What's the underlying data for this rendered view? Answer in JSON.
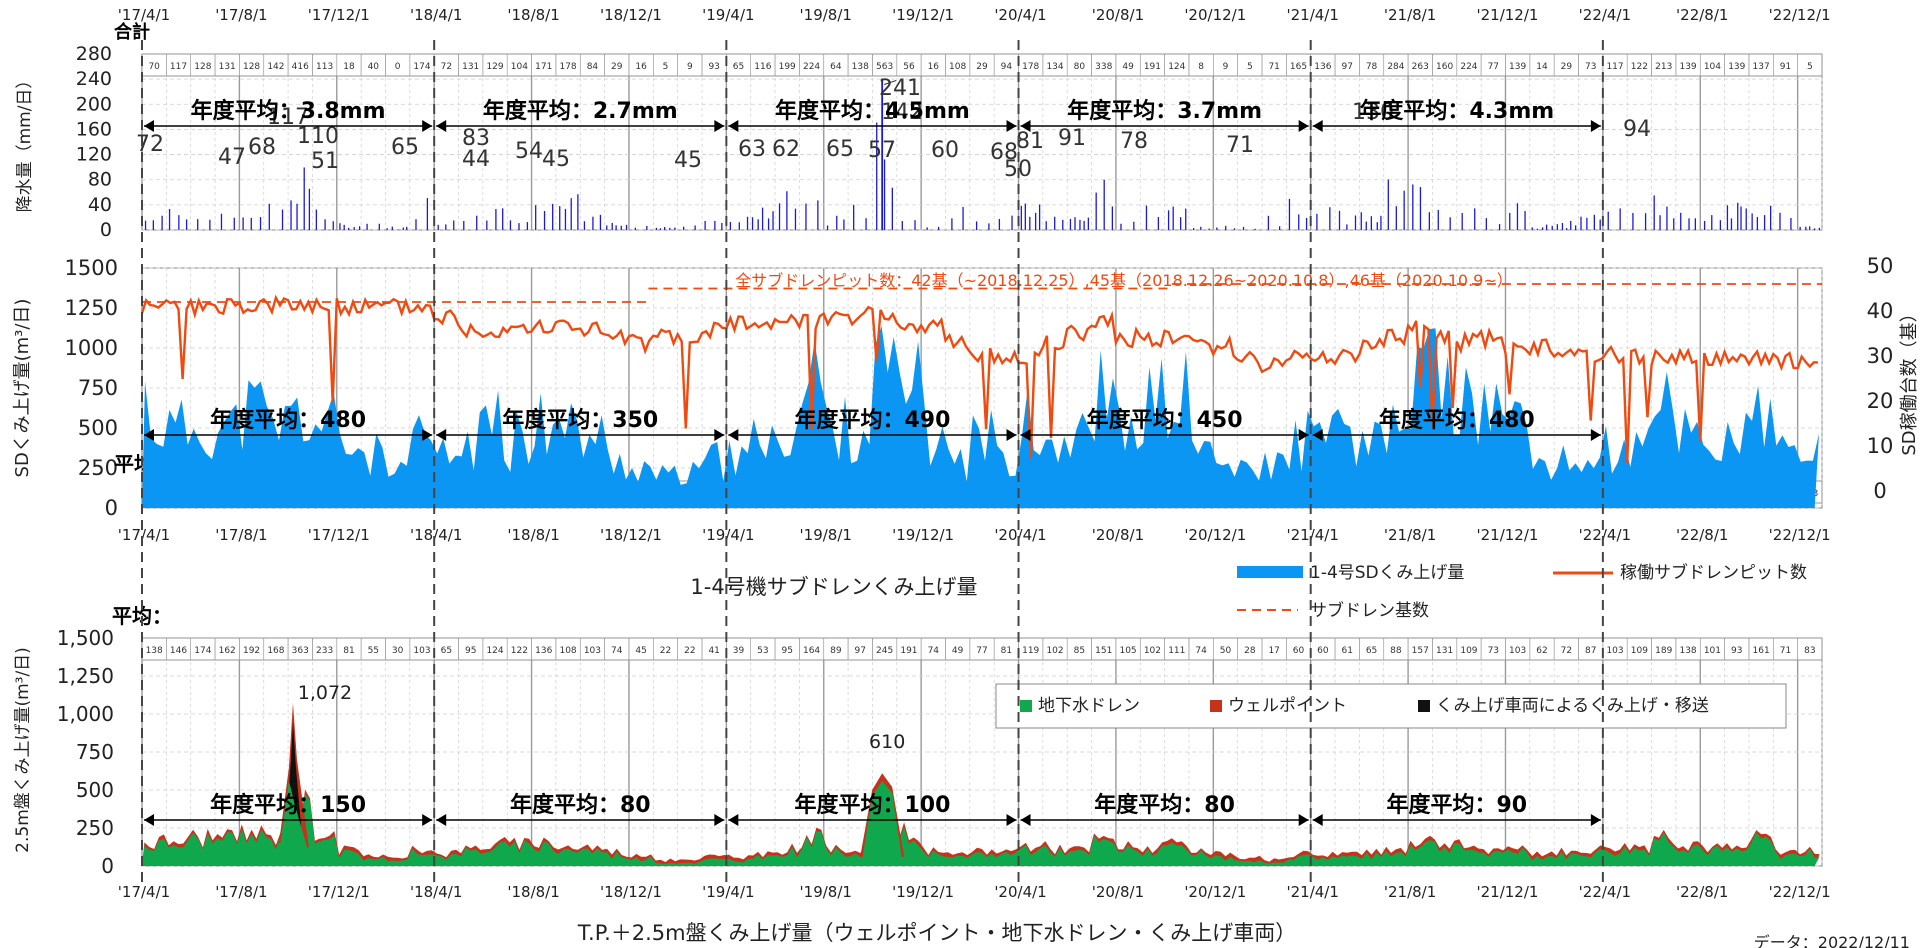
{
  "chart_data": [
    {
      "type": "bar",
      "id": "rain",
      "ylabel": "降水量（mm/日）",
      "corner_label": "合計",
      "ylim": [
        0,
        280
      ],
      "yticks": [
        0,
        40,
        80,
        120,
        160,
        200,
        240,
        280
      ],
      "x_tick_labels": [
        "'17/4/1",
        "'17/8/1",
        "'17/12/1",
        "'18/4/1",
        "'18/8/1",
        "'18/12/1",
        "'19/4/1",
        "'19/8/1",
        "'19/12/1",
        "'20/4/1",
        "'20/8/1",
        "'20/12/1",
        "'21/4/1",
        "'21/8/1",
        "'21/12/1",
        "'22/4/1",
        "'22/8/1",
        "'22/12/1"
      ],
      "monthly_totals": [
        "70",
        "117",
        "128",
        "131",
        "128",
        "142",
        "416",
        "113",
        "18",
        "40",
        "0",
        "174",
        "72",
        "131",
        "129",
        "104",
        "171",
        "178",
        "84",
        "29",
        "16",
        "5",
        "9",
        "93",
        "65",
        "116",
        "199",
        "224",
        "64",
        "138",
        "563",
        "56",
        "16",
        "108",
        "29",
        "94",
        "178",
        "134",
        "80",
        "338",
        "49",
        "191",
        "124",
        "8",
        "9",
        "5",
        "71",
        "165",
        "136",
        "97",
        "78",
        "284",
        "263",
        "160",
        "224",
        "77",
        "139",
        "14",
        "29",
        "73",
        "117",
        "122",
        "213",
        "139",
        "104",
        "139",
        "137",
        "91",
        "5"
      ],
      "annotations": [
        "72",
        "47",
        "68",
        "117",
        "110",
        "51",
        "65",
        "83",
        "44",
        "54",
        "45",
        "45",
        "63",
        "62",
        "65",
        "57",
        "142",
        "60",
        "68",
        "50",
        "81",
        "91",
        "78",
        "71",
        "130",
        "94",
        "241"
      ],
      "fiscal_averages": [
        "年度平均：3.8mm",
        "年度平均：2.7mm",
        "年度平均：4.5mm",
        "年度平均：3.7mm",
        "年度平均：4.3mm"
      ],
      "series_color": "#1a1adb"
    },
    {
      "type": "area",
      "id": "sd",
      "ylabel": "SDくみ上げ量(m³/日)",
      "ylabel_right": "SD稼働台数（基）",
      "corner_label": "平均：",
      "ylim": [
        0,
        1500
      ],
      "yticks": [
        0,
        250,
        500,
        750,
        1000,
        1250,
        1500
      ],
      "ylim_right": [
        0,
        50
      ],
      "yticks_right": [
        0,
        10,
        20,
        30,
        40,
        50
      ],
      "x_tick_labels": [
        "'17/4/1",
        "'17/8/1",
        "'17/12/1",
        "'18/4/1",
        "'18/8/1",
        "'18/12/1",
        "'19/4/1",
        "'19/8/1",
        "'19/12/1",
        "'20/4/1",
        "'20/8/1",
        "'20/12/1",
        "'21/4/1",
        "'21/8/1",
        "'21/12/1",
        "'22/4/1",
        "'22/8/1",
        "'22/12/1"
      ],
      "monthly_averages": [
        "528",
        "482",
        "522",
        "497",
        "600",
        "513",
        "567",
        "520",
        "388",
        "326",
        "200",
        "441",
        "315",
        "399",
        "490",
        "402",
        "478",
        "482",
        "447",
        "287",
        "253",
        "193",
        "203",
        "289",
        "281",
        "372",
        "498",
        "695",
        "488",
        "503",
        "758",
        "695",
        "442",
        "298",
        "441",
        "353",
        "496",
        "436",
        "436",
        "708",
        "443",
        "661",
        "652",
        "379",
        "263",
        "214",
        "271",
        "405",
        "385",
        "413",
        "377",
        "487",
        "801",
        "749",
        "616",
        "519",
        "517",
        "285",
        "272",
        "299",
        "341",
        "357",
        "567",
        "503",
        "401",
        "437",
        "547",
        "347",
        "353"
      ],
      "monthly_pits": [
        41,
        41,
        41,
        41,
        41,
        41,
        41,
        41,
        41,
        41,
        41,
        41,
        39,
        36,
        36,
        37,
        36,
        37,
        36,
        34,
        33,
        34,
        34,
        36,
        37,
        38,
        38,
        38,
        39,
        39,
        39,
        37,
        37,
        33,
        30,
        30,
        30,
        33,
        35,
        38,
        34,
        34,
        34,
        33,
        32,
        30,
        28,
        30,
        30,
        30,
        32,
        34,
        36,
        34,
        33,
        34,
        32,
        32,
        31,
        30,
        30,
        30,
        30,
        30,
        29,
        29,
        30,
        29,
        29
      ],
      "fiscal_averages": [
        "年度平均：480",
        "年度平均：350",
        "年度平均：490",
        "年度平均：450",
        "年度平均：480"
      ],
      "pit_note": "全サブドレンピット数：42基（~2018.12.25）,45基（2018.12.26~2020.10.8）,46基（2020.10.9~）",
      "pit_count_steps": [
        42,
        45,
        46
      ],
      "caption": "1-4号機サブドレンくみ上げ量",
      "legend": [
        "1-4号SDくみ上げ量",
        "稼働サブドレンピット数",
        "サブドレン基数"
      ],
      "colors": {
        "area": "#0a96f2",
        "pits": "#f04a10",
        "base": "#f04a10"
      }
    },
    {
      "type": "area",
      "id": "gw",
      "ylabel": "2.5m盤くみ上げ量(m³/日)",
      "corner_label": "平均：",
      "ylim": [
        0,
        1500
      ],
      "yticks": [
        "0",
        "250",
        "500",
        "750",
        "1,000",
        "1,250",
        "1,500"
      ],
      "x_tick_labels": [
        "'17/4/1",
        "'17/8/1",
        "'17/12/1",
        "'18/4/1",
        "'18/8/1",
        "'18/12/1",
        "'19/4/1",
        "'19/8/1",
        "'19/12/1",
        "'20/4/1",
        "'20/8/1",
        "'20/12/1",
        "'21/4/1",
        "'21/8/1",
        "'21/12/1",
        "'22/4/1",
        "'22/8/1",
        "'22/12/1"
      ],
      "monthly_averages": [
        "138",
        "146",
        "174",
        "162",
        "192",
        "168",
        "363",
        "233",
        "81",
        "55",
        "30",
        "103",
        "65",
        "95",
        "124",
        "122",
        "136",
        "108",
        "103",
        "74",
        "45",
        "22",
        "22",
        "41",
        "39",
        "53",
        "95",
        "164",
        "89",
        "97",
        "245",
        "191",
        "74",
        "49",
        "77",
        "81",
        "119",
        "102",
        "85",
        "151",
        "105",
        "102",
        "111",
        "74",
        "50",
        "28",
        "17",
        "60",
        "60",
        "61",
        "65",
        "88",
        "157",
        "131",
        "109",
        "73",
        "103",
        "62",
        "72",
        "87",
        "103",
        "109",
        "189",
        "138",
        "101",
        "93",
        "161",
        "71",
        "83"
      ],
      "peaks": [
        "1,072",
        "610"
      ],
      "fiscal_averages": [
        "年度平均：150",
        "年度平均：80",
        "年度平均：100",
        "年度平均：80",
        "年度平均：90"
      ],
      "legend": [
        "地下水ドレン",
        "ウェルポイント",
        "くみ上げ車両によるくみ上げ・移送"
      ],
      "caption": "T.P.＋2.5m盤くみ上げ量（ウェルポイント・地下水ドレン・くみ上げ車両）",
      "colors": {
        "drain": "#10a84c",
        "wellpoint": "#c8321a",
        "truck": "#111111"
      }
    }
  ],
  "footer": {
    "data_date": "データ：2022/12/11"
  }
}
